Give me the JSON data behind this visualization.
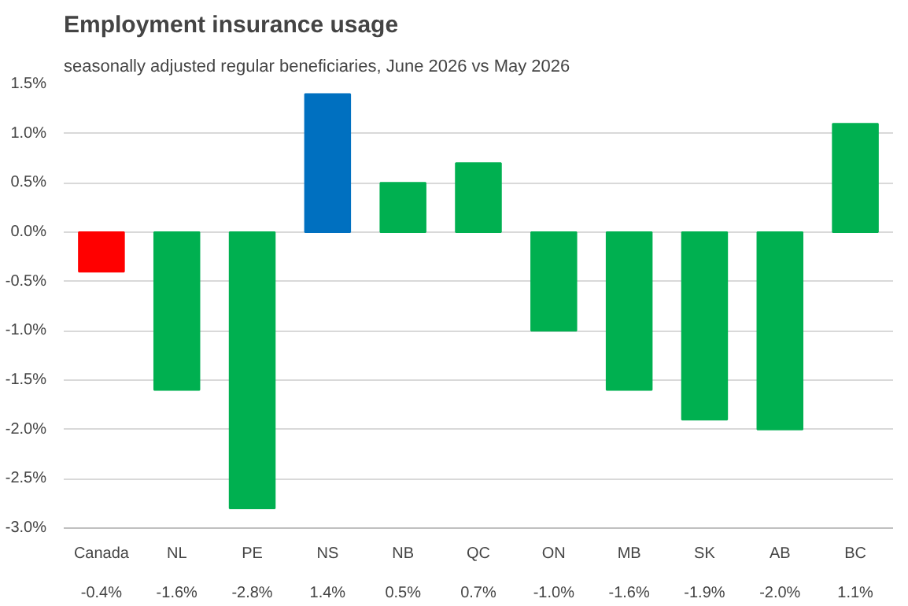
{
  "chart_data": {
    "type": "bar",
    "title": "Employment insurance usage",
    "subtitle": "seasonally adjusted regular beneficiaries, June 2026 vs May 2026",
    "categories": [
      "Canada",
      "NL",
      "PE",
      "NS",
      "NB",
      "QC",
      "ON",
      "MB",
      "SK",
      "AB",
      "BC"
    ],
    "values": [
      -0.4,
      -1.6,
      -2.8,
      1.4,
      0.5,
      0.7,
      -1.0,
      -1.6,
      -1.9,
      -2.0,
      1.1
    ],
    "colors": [
      "#ff0000",
      "#00b050",
      "#00b050",
      "#0070c0",
      "#00b050",
      "#00b050",
      "#00b050",
      "#00b050",
      "#00b050",
      "#00b050",
      "#00b050"
    ],
    "value_labels": [
      "-0.4%",
      "-1.6%",
      "-2.8%",
      "1.4%",
      "0.5%",
      "0.7%",
      "-1.0%",
      "-1.6%",
      "-1.9%",
      "-2.0%",
      "1.1%"
    ],
    "ylim": [
      -3.0,
      1.5
    ],
    "yticks": [
      {
        "value": -3.0,
        "label": "-3.0%"
      },
      {
        "value": -2.5,
        "label": "-2.5%"
      },
      {
        "value": -2.0,
        "label": "-2.0%"
      },
      {
        "value": -1.5,
        "label": "-1.5%"
      },
      {
        "value": -1.0,
        "label": "-1.0%"
      },
      {
        "value": -0.5,
        "label": "-0.5%"
      },
      {
        "value": 0.0,
        "label": "0.0%"
      },
      {
        "value": 0.5,
        "label": "0.5%"
      },
      {
        "value": 1.0,
        "label": "1.0%"
      },
      {
        "value": 1.5,
        "label": "1.5%"
      }
    ],
    "grid": "y"
  }
}
